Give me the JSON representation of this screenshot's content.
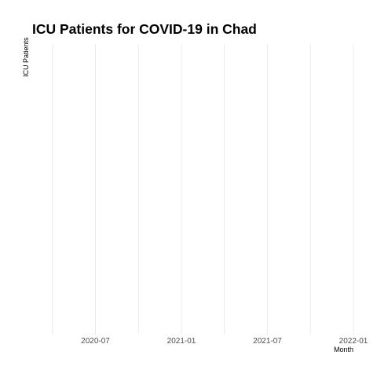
{
  "chart_data": {
    "type": "line",
    "title": "ICU Patients for COVID-19 in Chad",
    "xlabel": "Month",
    "ylabel": "ICU Patients",
    "x_ticks": [
      "2020-07",
      "2021-01",
      "2021-07",
      "2022-01"
    ],
    "x_range": [
      "2020-04",
      "2022-01"
    ],
    "series": [],
    "grid": true,
    "legend": "none"
  }
}
